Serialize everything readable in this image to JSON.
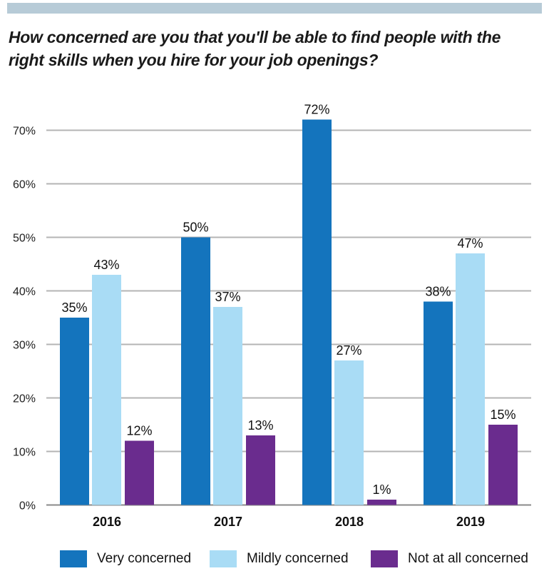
{
  "chart_data": {
    "type": "bar",
    "title": "How concerned are you that you'll be able to find people with the right skills when you hire for your job openings?",
    "categories": [
      "2016",
      "2017",
      "2018",
      "2019"
    ],
    "series": [
      {
        "name": "Very concerned",
        "values": [
          35,
          50,
          72,
          38
        ],
        "color": "#1474bd"
      },
      {
        "name": "Mildly concerned",
        "values": [
          43,
          37,
          27,
          47
        ],
        "color": "#a9dcf5"
      },
      {
        "name": "Not at all concerned",
        "values": [
          12,
          13,
          1,
          15
        ],
        "color": "#6a2c8e"
      }
    ],
    "ylim": [
      0,
      75
    ],
    "yticks": [
      0,
      10,
      20,
      30,
      40,
      50,
      60,
      70
    ],
    "ytick_labels": [
      "0%",
      "10%",
      "20%",
      "30%",
      "40%",
      "50%",
      "60%",
      "70%"
    ],
    "data_labels": [
      [
        "35%",
        "50%",
        "72%",
        "38%"
      ],
      [
        "43%",
        "37%",
        "27%",
        "47%"
      ],
      [
        "12%",
        "13%",
        "1%",
        "15%"
      ]
    ],
    "grid": true,
    "legend_position": "bottom"
  }
}
